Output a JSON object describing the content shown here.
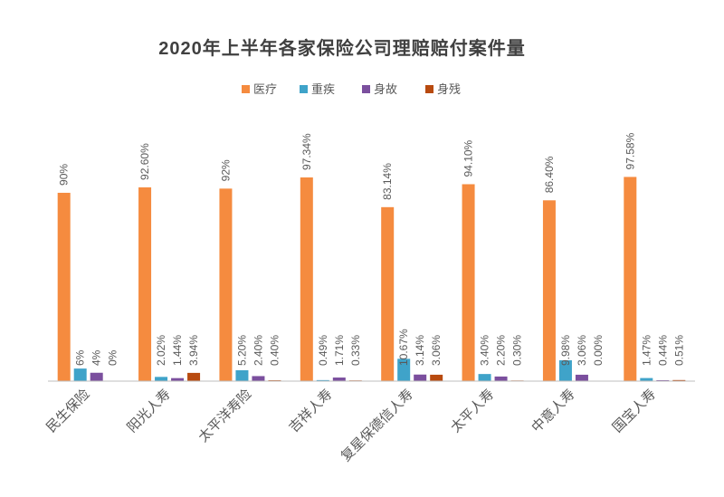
{
  "chart_data": {
    "type": "bar",
    "title": "2020年上半年各家保险公司理赔赔付案件量",
    "categories": [
      "民生保险",
      "阳光人寿",
      "太平洋寿险",
      "吉祥人寿",
      "复星保德信人寿",
      "太平人寿",
      "中意人寿",
      "国宝人寿"
    ],
    "series": [
      {
        "name": "医疗",
        "color": "#F58B3F",
        "values": [
          90,
          92.6,
          92,
          97.34,
          83.14,
          94.1,
          86.4,
          97.58
        ],
        "labels": [
          "90%",
          "92.60%",
          "92%",
          "97.34%",
          "83.14%",
          "94.10%",
          "86.40%",
          "97.58%"
        ]
      },
      {
        "name": "重疾",
        "color": "#3FA3C9",
        "values": [
          6,
          2.02,
          5.2,
          0.49,
          10.67,
          3.4,
          9.98,
          1.47
        ],
        "labels": [
          "6%",
          "2.02%",
          "5.20%",
          "0.49%",
          "10.67%",
          "3.40%",
          "9.98%",
          "1.47%"
        ]
      },
      {
        "name": "身故",
        "color": "#7B4F9E",
        "values": [
          4,
          1.44,
          2.4,
          1.71,
          3.14,
          2.2,
          3.06,
          0.44
        ],
        "labels": [
          "4%",
          "1.44%",
          "2.40%",
          "1.71%",
          "3.14%",
          "2.20%",
          "3.06%",
          "0.44%"
        ]
      },
      {
        "name": "身残",
        "color": "#B84A0F",
        "values": [
          0,
          3.94,
          0.4,
          0.33,
          3.06,
          0.3,
          0.0,
          0.51
        ],
        "labels": [
          "0%",
          "3.94%",
          "0.40%",
          "0.33%",
          "3.06%",
          "0.30%",
          "0.00%",
          "0.51%"
        ]
      }
    ],
    "ylim": [
      0,
      100
    ],
    "legend_position": "top-center",
    "grid": false
  }
}
